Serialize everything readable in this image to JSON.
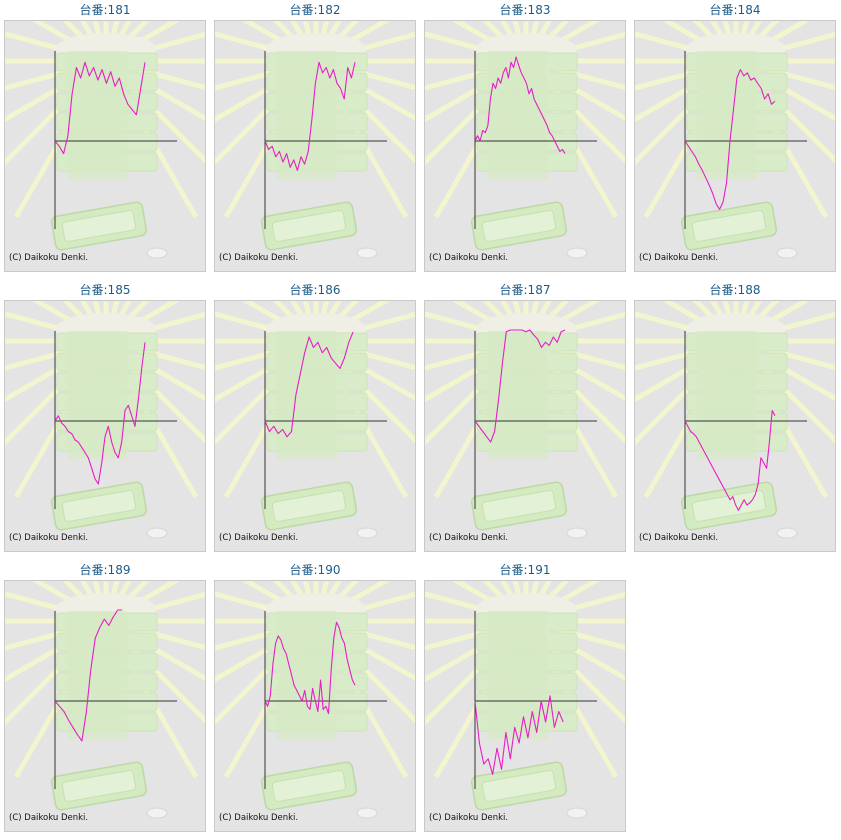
{
  "chart_data": [
    {
      "type": "line",
      "title": "台番:181",
      "copyright": "(C) Daikoku Denki.",
      "series": [
        {
          "values": [
            0,
            -5,
            -12,
            5,
            45,
            70,
            60,
            75,
            62,
            70,
            58,
            68,
            55,
            66,
            52,
            60,
            45,
            35,
            30,
            25,
            50,
            75
          ]
        }
      ]
    },
    {
      "type": "line",
      "title": "台番:182",
      "copyright": "(C) Daikoku Denki.",
      "series": [
        {
          "values": [
            0,
            -8,
            -5,
            -15,
            -10,
            -20,
            -12,
            -25,
            -18,
            -28,
            -15,
            -22,
            -10,
            20,
            55,
            75,
            65,
            70,
            60,
            68,
            55,
            50,
            40,
            70,
            60,
            75
          ]
        }
      ]
    },
    {
      "type": "line",
      "title": "台番:183",
      "copyright": "(C) Daikoku Denki.",
      "series": [
        {
          "values": [
            0,
            5,
            0,
            10,
            8,
            15,
            40,
            55,
            50,
            60,
            55,
            65,
            70,
            60,
            75,
            70,
            80,
            72,
            65,
            60,
            55,
            45,
            50,
            40,
            35,
            30,
            25,
            20,
            15,
            8,
            5,
            0,
            -5,
            -10,
            -8,
            -12
          ]
        }
      ]
    },
    {
      "type": "line",
      "title": "台番:184",
      "copyright": "(C) Daikoku Denki.",
      "series": [
        {
          "values": [
            0,
            -5,
            -10,
            -15,
            -22,
            -28,
            -35,
            -42,
            -50,
            -60,
            -65,
            -58,
            -40,
            0,
            30,
            60,
            68,
            62,
            65,
            58,
            60,
            55,
            50,
            40,
            45,
            35,
            38
          ]
        }
      ]
    },
    {
      "type": "line",
      "title": "台番:185",
      "copyright": "(C) Daikoku Denki.",
      "series": [
        {
          "values": [
            0,
            5,
            -2,
            -5,
            -10,
            -12,
            -18,
            -20,
            -25,
            -30,
            -35,
            -45,
            -55,
            -60,
            -40,
            -15,
            -5,
            -20,
            -30,
            -35,
            -20,
            10,
            15,
            5,
            -5,
            20,
            50,
            75
          ]
        }
      ]
    },
    {
      "type": "line",
      "title": "台番:186",
      "copyright": "(C) Daikoku Denki.",
      "series": [
        {
          "values": [
            0,
            -10,
            -5,
            -12,
            -8,
            -15,
            -10,
            25,
            45,
            65,
            80,
            70,
            75,
            65,
            70,
            60,
            55,
            50,
            60,
            75,
            85
          ]
        }
      ]
    },
    {
      "type": "line",
      "title": "台番:187",
      "copyright": "(C) Daikoku Denki.",
      "series": [
        {
          "values": [
            0,
            -5,
            -10,
            -15,
            -20,
            -10,
            20,
            55,
            85,
            90,
            95,
            88,
            92,
            85,
            90,
            82,
            78,
            70,
            75,
            72,
            80,
            75,
            85,
            90
          ]
        }
      ]
    },
    {
      "type": "line",
      "title": "台番:188",
      "copyright": "(C) Daikoku Denki.",
      "series": [
        {
          "values": [
            0,
            -5,
            -10,
            -12,
            -15,
            -20,
            -25,
            -30,
            -35,
            -40,
            -45,
            -50,
            -55,
            -60,
            -65,
            -70,
            -75,
            -72,
            -80,
            -85,
            -80,
            -75,
            -80,
            -78,
            -75,
            -70,
            -60,
            -35,
            -40,
            -45,
            -20,
            10,
            5
          ]
        }
      ]
    },
    {
      "type": "line",
      "title": "台番:189",
      "copyright": "(C) Daikoku Denki.",
      "series": [
        {
          "values": [
            0,
            -5,
            -10,
            -18,
            -25,
            -32,
            -38,
            -10,
            30,
            60,
            70,
            78,
            72,
            80,
            88,
            92
          ]
        }
      ]
    },
    {
      "type": "line",
      "title": "台番:190",
      "copyright": "(C) Daikoku Denki.",
      "series": [
        {
          "values": [
            0,
            -5,
            5,
            35,
            55,
            62,
            58,
            50,
            45,
            35,
            25,
            15,
            10,
            5,
            0,
            10,
            -5,
            -8,
            12,
            0,
            -10,
            20,
            -8,
            -5,
            -12,
            30,
            60,
            75,
            70,
            60,
            55,
            40,
            30,
            20,
            15
          ]
        }
      ]
    },
    {
      "type": "line",
      "title": "台番:191",
      "copyright": "(C) Daikoku Denki.",
      "series": [
        {
          "values": [
            0,
            -40,
            -60,
            -55,
            -70,
            -45,
            -65,
            -30,
            -55,
            -25,
            -40,
            -15,
            -35,
            -10,
            -30,
            0,
            -20,
            5,
            -25,
            -10,
            -20
          ]
        }
      ]
    }
  ]
}
